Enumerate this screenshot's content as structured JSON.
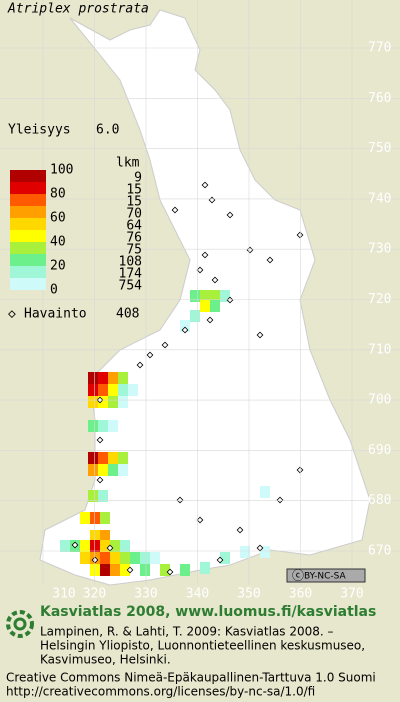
{
  "header": {
    "title": "Atriplex prostrata"
  },
  "frequency": {
    "label": "Yleisyys",
    "value": "6.0"
  },
  "legend": {
    "count_header": "lkm",
    "scale_labels": [
      100,
      80,
      60,
      40,
      20,
      0
    ],
    "counts": [
      9,
      15,
      15,
      70,
      64,
      76,
      75,
      108,
      174,
      754
    ],
    "observation_label": "Havainto",
    "observation_count": 408
  },
  "grid": {
    "y_ticks": [
      770,
      760,
      750,
      740,
      730,
      720,
      710,
      700,
      690,
      680,
      670
    ],
    "x_ticks": [
      310,
      320,
      330,
      340,
      350,
      360,
      370
    ]
  },
  "license_badge": "BY-NC-SA",
  "footer": {
    "heading": "Kasviatlas 2008, www.luomus.fi/kasviatlas",
    "citation": [
      "Lampinen, R. & Lahti, T. 2009: Kasviatlas 2008. –",
      "Helsingin Yliopisto, Luonnontieteellinen keskusmuseo,",
      "Kasvimuseo, Helsinki."
    ],
    "license": [
      "Creative Commons Nimeä-Epäkaupallinen-Tarttuva 1.0 Suomi",
      "http://creativecommons.org/licenses/by-nc-sa/1.0/fi"
    ]
  }
}
